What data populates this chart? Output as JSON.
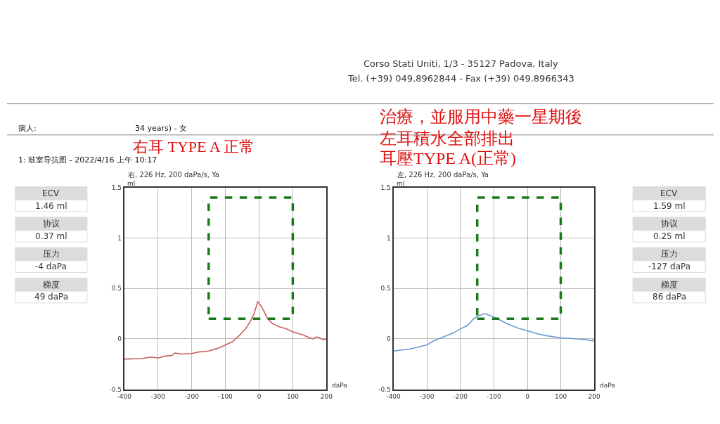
{
  "chart_data": [
    {
      "type": "other",
      "annotations": [
        "ECV",
        "1.46 ml",
        "协议",
        "0.37 ml",
        "压力",
        "-4 daPa",
        "梯度",
        "49 daPa"
      ]
    },
    {
      "type": "line",
      "title": "右, 226 Hz, 200 daPa/s, Ya",
      "xlabel": "daPa",
      "ylabel": "ml",
      "annotations": [
        "Corso Stati Uniti, 1/3 - 35127 Padova, Italy",
        "Tel. (+39) 049.8962844 - Fax (+39) 049.8966343",
        "病人:",
        "34 years) - 女",
        "1: 鼓室导抗图 - 2022/4/16 上午 10:17",
        "右耳 TYPE A 正常"
      ],
      "series": [
        {
          "color": "#c8605c",
          "x": [
            -400,
            -350,
            -320,
            -300,
            -280,
            -260,
            -250,
            -230,
            -200,
            -180,
            -150,
            -120,
            -100,
            -80,
            -60,
            -40,
            -25,
            -15,
            -4,
            5,
            15,
            25,
            40,
            60,
            80,
            100,
            130,
            150,
            160,
            170,
            180,
            190,
            200
          ],
          "values": [
            -0.2,
            -0.195,
            -0.18,
            -0.19,
            -0.17,
            -0.165,
            -0.14,
            -0.15,
            -0.145,
            -0.13,
            -0.12,
            -0.09,
            -0.06,
            -0.03,
            0.03,
            0.1,
            0.18,
            0.25,
            0.37,
            0.33,
            0.27,
            0.2,
            0.15,
            0.12,
            0.1,
            0.07,
            0.04,
            0.01,
            0.0,
            0.02,
            0.01,
            -0.01,
            0.0
          ]
        }
      ],
      "xlim": [
        -400,
        200
      ],
      "xticks": [
        -400,
        -300,
        -200,
        -100,
        0,
        100,
        200
      ],
      "ylim": [
        -0.5,
        1.5
      ],
      "yticks": [
        -0.5,
        0,
        0.5,
        1,
        1.5
      ],
      "grid": true,
      "marker": "none",
      "line_style": "solid"
    },
    {
      "type": "line",
      "title": "左, 226 Hz, 200 daPa/s, Ya",
      "xlabel": "daPa",
      "ylabel": "ml",
      "annotations": [
        "治療，並服用中藥一星期後",
        "左耳積水全部排出",
        "耳壓TYPE A(正常)"
      ],
      "series": [
        {
          "color": "#6a9ad0",
          "x": [
            -400,
            -350,
            -300,
            -280,
            -250,
            -220,
            -200,
            -180,
            -160,
            -145,
            -127,
            -110,
            -90,
            -60,
            -30,
            0,
            30,
            60,
            100,
            150,
            180,
            195,
            200
          ],
          "values": [
            -0.12,
            -0.1,
            -0.06,
            -0.02,
            0.02,
            0.06,
            0.1,
            0.13,
            0.2,
            0.23,
            0.25,
            0.23,
            0.2,
            0.15,
            0.11,
            0.08,
            0.05,
            0.03,
            0.01,
            0.0,
            -0.01,
            -0.02,
            0.0
          ]
        }
      ],
      "xlim": [
        -400,
        200
      ],
      "xticks": [
        -400,
        -300,
        -200,
        -100,
        0,
        100,
        200
      ],
      "ylim": [
        -0.5,
        1.5
      ],
      "yticks": [
        -0.5,
        0,
        0.5,
        1,
        1.5
      ],
      "grid": true,
      "marker": "none",
      "line_style": "solid"
    },
    {
      "type": "other",
      "annotations": [
        "ECV",
        "1.59 ml",
        "协议",
        "0.25 ml",
        "压力",
        "-127 daPa",
        "梯度",
        "86 daPa"
      ]
    }
  ]
}
